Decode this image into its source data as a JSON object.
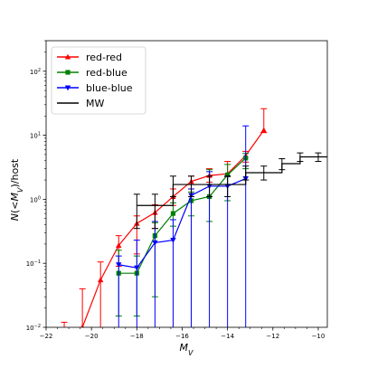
{
  "chart_data": {
    "type": "line",
    "xlabel": "M_V",
    "ylabel": "N(<M_V)/host",
    "xlim": [
      -22,
      -9.6
    ],
    "ylim": [
      0.01,
      300
    ],
    "yscale": "log",
    "grid": false,
    "legend_placement": "top-left",
    "x_ticks": [
      -22,
      -20,
      -18,
      -16,
      -14,
      -12,
      -10
    ],
    "x_tick_labels": [
      "−22",
      "−20",
      "−18",
      "−16",
      "−14",
      "−12",
      "−10"
    ],
    "y_ticks": [
      0.01,
      0.1,
      1,
      10,
      100
    ],
    "y_tick_labels": [
      {
        "base": "10",
        "exp": "−2"
      },
      {
        "base": "10",
        "exp": "−1"
      },
      {
        "base": "10",
        "exp": "0"
      },
      {
        "base": "10",
        "exp": "1"
      },
      {
        "base": "10",
        "exp": "2"
      }
    ],
    "series": [
      {
        "name": "red-red",
        "color": "#ff0000",
        "marker": "triangle-up",
        "x": [
          -21.2,
          -20.4,
          -19.6,
          -18.8,
          -18.0,
          -17.2,
          -16.4,
          -15.6,
          -14.8,
          -14.0,
          -13.2,
          -12.4
        ],
        "y": [
          0.006,
          0.01,
          0.055,
          0.19,
          0.42,
          0.62,
          1.1,
          1.9,
          2.35,
          2.5,
          4.8,
          12
        ],
        "err_low": [
          0.0,
          0.0,
          0.0,
          0.09,
          0.14,
          0.35,
          0.8,
          1.45,
          1.85,
          2.25,
          3.8,
          11
        ],
        "err_high": [
          0.012,
          0.04,
          0.105,
          0.27,
          0.55,
          0.82,
          1.45,
          2.3,
          3.0,
          3.9,
          5.6,
          26
        ],
        "show_line": true
      },
      {
        "name": "red-blue",
        "color": "#008000",
        "marker": "square",
        "x": [
          -18.8,
          -18.0,
          -17.2,
          -16.4,
          -15.6,
          -14.8,
          -14.0,
          -13.2
        ],
        "y": [
          0.07,
          0.07,
          0.27,
          0.6,
          0.95,
          1.1,
          2.4,
          4.4
        ],
        "err_low": [
          0.015,
          0.015,
          0.03,
          0.38,
          0.55,
          0.45,
          0.95,
          3.0
        ],
        "err_high": [
          0.16,
          0.13,
          0.43,
          0.88,
          1.3,
          2.9,
          3.5,
          5.2
        ],
        "show_line": true
      },
      {
        "name": "blue-blue",
        "color": "#0000ff",
        "marker": "triangle-down",
        "x": [
          -18.8,
          -18.0,
          -17.2,
          -16.4,
          -15.6,
          -14.8,
          -14.0,
          -13.2
        ],
        "y": [
          0.095,
          0.085,
          0.21,
          0.23,
          1.15,
          1.6,
          1.6,
          2.1
        ],
        "err_low": [
          0.0,
          0.0,
          0.0,
          0.0,
          0.0,
          0.0,
          0.0,
          0.0
        ],
        "err_high": [
          0.13,
          0.23,
          0.45,
          0.48,
          1.45,
          2.7,
          2.3,
          14
        ],
        "show_line": true
      },
      {
        "name": "MW",
        "color": "#000000",
        "marker": "none",
        "x": [
          -18.0,
          -17.2,
          -16.4,
          -15.6,
          -14.8,
          -14.0,
          -13.2,
          -12.4,
          -11.6,
          -10.8,
          -10.0
        ],
        "y": [
          0.8,
          0.8,
          1.7,
          1.7,
          1.7,
          1.7,
          2.6,
          2.6,
          3.6,
          4.6,
          4.6
        ],
        "err_low": [
          0.35,
          0.35,
          1.1,
          1.1,
          1.1,
          1.1,
          2.0,
          2.0,
          2.9,
          3.9,
          3.9
        ],
        "err_high": [
          1.2,
          1.2,
          2.3,
          2.3,
          2.3,
          2.3,
          3.3,
          3.3,
          4.3,
          5.3,
          5.3
        ],
        "show_line": true,
        "step": true
      }
    ]
  }
}
